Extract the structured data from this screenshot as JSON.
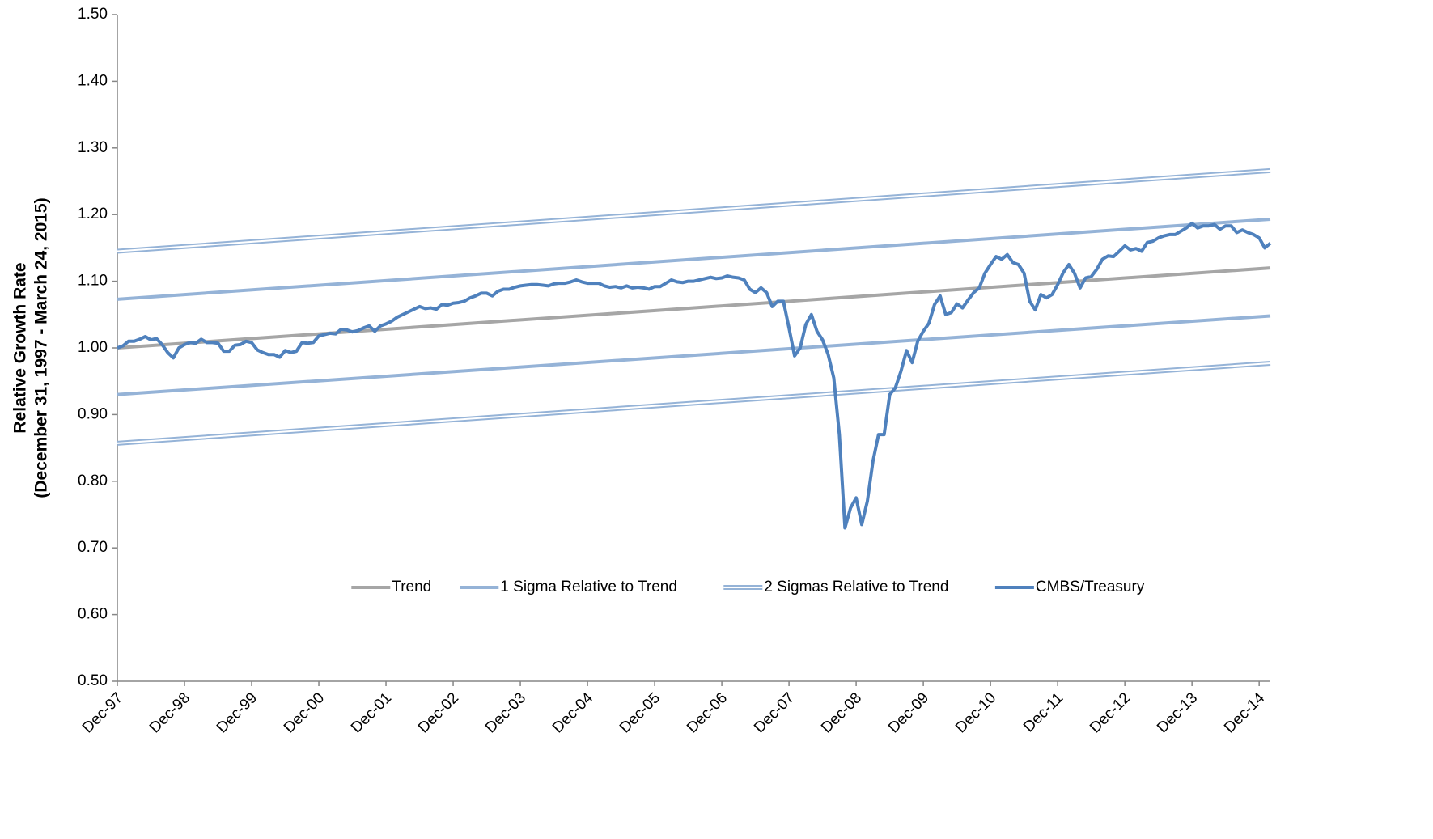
{
  "chart_data": {
    "type": "line",
    "y_title": [
      "Relative Growth Rate",
      "(December 31, 1997 - March 24, 2015)"
    ],
    "xlim": [
      0,
      206
    ],
    "xticks": [
      {
        "value": 0,
        "label": "Dec-97"
      },
      {
        "value": 12,
        "label": "Dec-98"
      },
      {
        "value": 24,
        "label": "Dec-99"
      },
      {
        "value": 36,
        "label": "Dec-00"
      },
      {
        "value": 48,
        "label": "Dec-01"
      },
      {
        "value": 60,
        "label": "Dec-02"
      },
      {
        "value": 72,
        "label": "Dec-03"
      },
      {
        "value": 84,
        "label": "Dec-04"
      },
      {
        "value": 96,
        "label": "Dec-05"
      },
      {
        "value": 108,
        "label": "Dec-06"
      },
      {
        "value": 120,
        "label": "Dec-07"
      },
      {
        "value": 132,
        "label": "Dec-08"
      },
      {
        "value": 144,
        "label": "Dec-09"
      },
      {
        "value": 156,
        "label": "Dec-10"
      },
      {
        "value": 168,
        "label": "Dec-11"
      },
      {
        "value": 180,
        "label": "Dec-12"
      },
      {
        "value": 192,
        "label": "Dec-13"
      },
      {
        "value": 204,
        "label": "Dec-14"
      }
    ],
    "ylim": [
      0.5,
      1.5
    ],
    "yticks": [
      {
        "value": 0.5,
        "label": "0.50"
      },
      {
        "value": 0.6,
        "label": "0.60"
      },
      {
        "value": 0.7,
        "label": "0.70"
      },
      {
        "value": 0.8,
        "label": "0.80"
      },
      {
        "value": 0.9,
        "label": "0.90"
      },
      {
        "value": 1.0,
        "label": "1.00"
      },
      {
        "value": 1.1,
        "label": "1.10"
      },
      {
        "value": 1.2,
        "label": "1.20"
      },
      {
        "value": 1.3,
        "label": "1.30"
      },
      {
        "value": 1.4,
        "label": "1.40"
      },
      {
        "value": 1.5,
        "label": "1.50"
      }
    ],
    "legend": "bottom",
    "series": [
      {
        "name": "Trend",
        "color": "#a6a6a6",
        "style": "solid",
        "x": [
          0,
          206
        ],
        "values": [
          1.0,
          1.12
        ]
      },
      {
        "name": "1 Sigma Relative to Trend",
        "color": "#95b3d7",
        "style": "solid",
        "x": [
          0,
          206
        ],
        "upper": [
          1.073,
          1.193
        ],
        "lower": [
          0.93,
          1.048
        ]
      },
      {
        "name": "2 Sigmas Relative to Trend",
        "color": "#95b3d7",
        "style": "double",
        "x": [
          0,
          206
        ],
        "upper": [
          1.145,
          1.266
        ],
        "lower": [
          0.857,
          0.977
        ]
      },
      {
        "name": "CMBS/Treasury",
        "color": "#4f81bd",
        "style": "solid",
        "x": [
          0,
          1,
          2,
          3,
          4,
          5,
          6,
          7,
          8,
          9,
          10,
          11,
          12,
          13,
          14,
          15,
          16,
          17,
          18,
          19,
          20,
          21,
          22,
          23,
          24,
          25,
          26,
          27,
          28,
          29,
          30,
          31,
          32,
          33,
          34,
          35,
          36,
          37,
          38,
          39,
          40,
          41,
          42,
          43,
          44,
          45,
          46,
          47,
          48,
          49,
          50,
          51,
          52,
          53,
          54,
          55,
          56,
          57,
          58,
          59,
          60,
          61,
          62,
          63,
          64,
          65,
          66,
          67,
          68,
          69,
          70,
          71,
          72,
          73,
          74,
          75,
          76,
          77,
          78,
          79,
          80,
          81,
          82,
          83,
          84,
          85,
          86,
          87,
          88,
          89,
          90,
          91,
          92,
          93,
          94,
          95,
          96,
          97,
          98,
          99,
          100,
          101,
          102,
          103,
          104,
          105,
          106,
          107,
          108,
          109,
          110,
          111,
          112,
          113,
          114,
          115,
          116,
          117,
          118,
          119,
          120,
          121,
          122,
          123,
          124,
          125,
          126,
          127,
          128,
          129,
          130,
          131,
          132,
          133,
          134,
          135,
          136,
          137,
          138,
          139,
          140,
          141,
          142,
          143,
          144,
          145,
          146,
          147,
          148,
          149,
          150,
          151,
          152,
          153,
          154,
          155,
          156,
          157,
          158,
          159,
          160,
          161,
          162,
          163,
          164,
          165,
          166,
          167,
          168,
          169,
          170,
          171,
          172,
          173,
          174,
          175,
          176,
          177,
          178,
          179,
          180,
          181,
          182,
          183,
          184,
          185,
          186,
          187,
          188,
          189,
          190,
          191,
          192,
          193,
          194,
          195,
          196,
          197,
          198,
          199,
          200,
          201,
          202,
          203,
          204,
          205,
          206
        ],
        "values": [
          1.0,
          1.003,
          1.01,
          1.01,
          1.013,
          1.017,
          1.012,
          1.014,
          1.005,
          0.993,
          0.985,
          1.0,
          1.005,
          1.008,
          1.007,
          1.013,
          1.008,
          1.008,
          1.007,
          0.995,
          0.995,
          1.004,
          1.005,
          1.01,
          1.008,
          0.997,
          0.993,
          0.99,
          0.99,
          0.986,
          0.996,
          0.993,
          0.995,
          1.008,
          1.007,
          1.008,
          1.018,
          1.02,
          1.022,
          1.021,
          1.028,
          1.027,
          1.024,
          1.026,
          1.03,
          1.033,
          1.025,
          1.033,
          1.036,
          1.04,
          1.046,
          1.05,
          1.054,
          1.058,
          1.062,
          1.059,
          1.06,
          1.058,
          1.065,
          1.064,
          1.067,
          1.068,
          1.07,
          1.075,
          1.078,
          1.082,
          1.082,
          1.078,
          1.085,
          1.088,
          1.088,
          1.091,
          1.093,
          1.094,
          1.095,
          1.095,
          1.094,
          1.093,
          1.096,
          1.097,
          1.097,
          1.099,
          1.102,
          1.099,
          1.097,
          1.097,
          1.097,
          1.093,
          1.091,
          1.092,
          1.09,
          1.093,
          1.09,
          1.091,
          1.09,
          1.088,
          1.092,
          1.092,
          1.097,
          1.102,
          1.099,
          1.098,
          1.1,
          1.1,
          1.102,
          1.104,
          1.106,
          1.104,
          1.105,
          1.108,
          1.106,
          1.105,
          1.102,
          1.088,
          1.083,
          1.09,
          1.083,
          1.062,
          1.07,
          1.07,
          1.03,
          0.988,
          1.0,
          1.035,
          1.05,
          1.025,
          1.012,
          0.99,
          0.955,
          0.87,
          0.73,
          0.76,
          0.775,
          0.735,
          0.77,
          0.83,
          0.87,
          0.87,
          0.93,
          0.94,
          0.965,
          0.996,
          0.978,
          1.01,
          1.025,
          1.037,
          1.065,
          1.078,
          1.05,
          1.053,
          1.066,
          1.06,
          1.072,
          1.083,
          1.09,
          1.112,
          1.125,
          1.137,
          1.133,
          1.14,
          1.128,
          1.125,
          1.112,
          1.07,
          1.057,
          1.08,
          1.075,
          1.08,
          1.095,
          1.113,
          1.125,
          1.112,
          1.09,
          1.105,
          1.107,
          1.118,
          1.133,
          1.138,
          1.137,
          1.145,
          1.153,
          1.147,
          1.149,
          1.145,
          1.158,
          1.16,
          1.165,
          1.168,
          1.17,
          1.17,
          1.175,
          1.18,
          1.187,
          1.18,
          1.183,
          1.183,
          1.185,
          1.178,
          1.183,
          1.183,
          1.173,
          1.177,
          1.173,
          1.17,
          1.165,
          1.15,
          1.157
        ]
      }
    ]
  }
}
